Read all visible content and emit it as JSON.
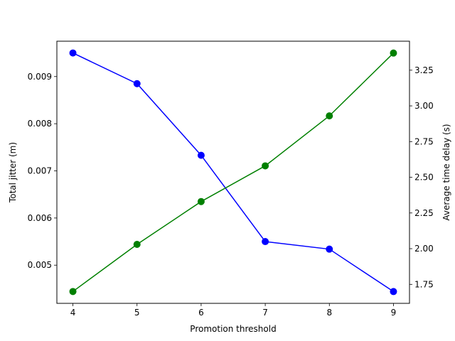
{
  "chart_data": {
    "type": "line",
    "title": "",
    "xlabel": "Promotion threshold",
    "ylabel_left": "Total jitter (m)",
    "ylabel_right": "Average time delay (s)",
    "x": [
      4,
      5,
      6,
      7,
      8,
      9
    ],
    "xlim": [
      3.75,
      9.25
    ],
    "xticks": [
      "4",
      "5",
      "6",
      "7",
      "8",
      "9"
    ],
    "grid": false,
    "series": [
      {
        "axis": "left",
        "color": "#0000ff",
        "marker": "circle",
        "values": [
          0.0095,
          0.00885,
          0.00733,
          0.0055,
          0.00534,
          0.00444
        ]
      },
      {
        "axis": "right",
        "color": "#008000",
        "marker": "circle",
        "values": [
          1.7,
          2.03,
          2.33,
          2.58,
          2.93,
          3.37
        ]
      }
    ],
    "left_axis": {
      "ylim": [
        0.00419,
        0.00975
      ],
      "ticks": [
        0.005,
        0.006,
        0.007,
        0.008,
        0.009
      ],
      "tick_labels": [
        "0.005",
        "0.006",
        "0.007",
        "0.008",
        "0.009"
      ]
    },
    "right_axis": {
      "ylim": [
        1.617,
        3.453
      ],
      "ticks": [
        1.75,
        2.0,
        2.25,
        2.5,
        2.75,
        3.0,
        3.25
      ],
      "tick_labels": [
        "1.75",
        "2.00",
        "2.25",
        "2.50",
        "2.75",
        "3.00",
        "3.25"
      ]
    }
  }
}
